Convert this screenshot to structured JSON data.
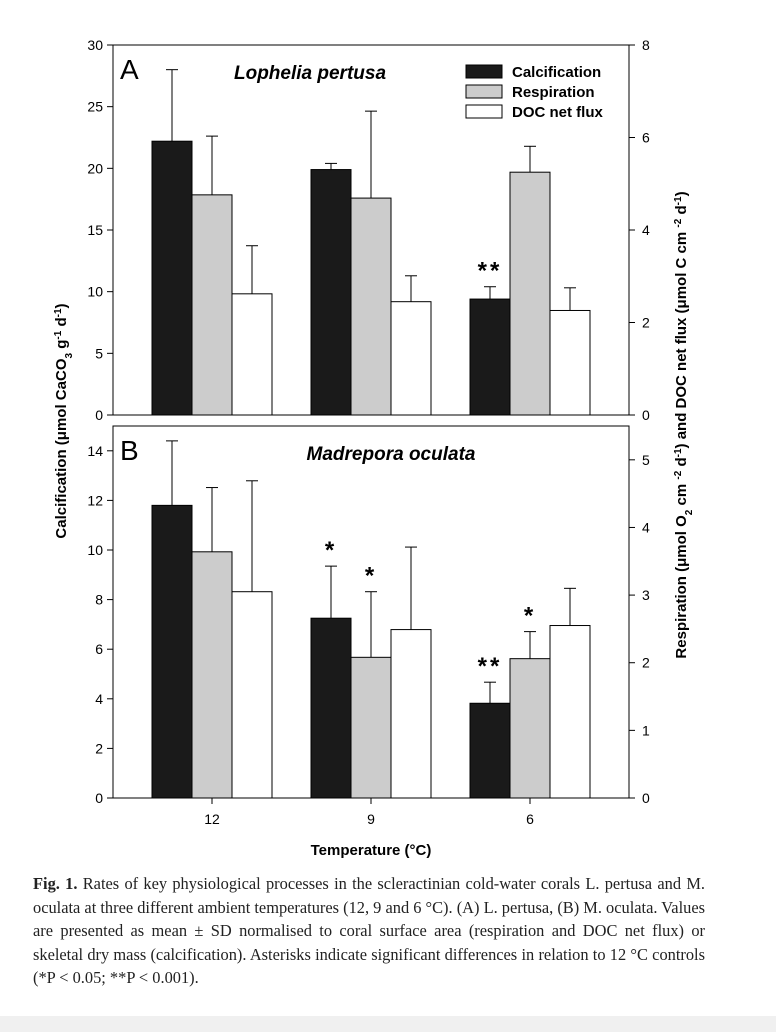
{
  "chart_data": [
    {
      "type": "bar",
      "panel": "A",
      "title": "Lophelia pertusa",
      "categories": [
        "12",
        "9",
        "6"
      ],
      "xlabel": "Temperature (°C)",
      "ylabel_left": "Calcification (μmol CaCO3 g-1 d-1)",
      "ylabel_right": "Respiration (μmol O2 cm-2 d-1) and DOC net flux (μmol C cm-2 d-1)",
      "ylim_left": [
        0,
        30
      ],
      "yticks_left": [
        "0",
        "5",
        "10",
        "15",
        "20",
        "25",
        "30"
      ],
      "ylim_right": [
        0,
        8
      ],
      "yticks_right": [
        "0",
        "2",
        "4",
        "6",
        "8"
      ],
      "legend": {
        "position": "top-right"
      },
      "series": [
        {
          "name": "Calcification",
          "axis": "left",
          "color": "#1a1a1a",
          "values": [
            22.2,
            19.9,
            9.4
          ],
          "sd": [
            5.8,
            0.5,
            1.0
          ]
        },
        {
          "name": "Respiration",
          "axis": "right",
          "color": "#cccccc",
          "values": [
            4.76,
            4.69,
            5.25
          ],
          "sd": [
            1.27,
            1.88,
            0.56
          ]
        },
        {
          "name": "DOC net flux",
          "axis": "right",
          "color": "#ffffff",
          "values": [
            2.62,
            2.45,
            2.26
          ],
          "sd": [
            1.04,
            0.56,
            0.49
          ]
        }
      ],
      "annotations": [
        {
          "series": "Calcification",
          "category": "6",
          "label": "**"
        }
      ]
    },
    {
      "type": "bar",
      "panel": "B",
      "title": "Madrepora oculata",
      "categories": [
        "12",
        "9",
        "6"
      ],
      "xlabel": "Temperature (°C)",
      "ylim_left": [
        0,
        15
      ],
      "yticks_left": [
        "0",
        "2",
        "4",
        "6",
        "8",
        "10",
        "12",
        "14"
      ],
      "ylim_right": [
        0,
        5.5
      ],
      "yticks_right": [
        "0",
        "1",
        "2",
        "3",
        "4",
        "5"
      ],
      "series": [
        {
          "name": "Calcification",
          "axis": "left",
          "color": "#1a1a1a",
          "values": [
            11.8,
            7.25,
            3.82
          ],
          "sd": [
            2.6,
            2.1,
            0.85
          ]
        },
        {
          "name": "Respiration",
          "axis": "right",
          "color": "#cccccc",
          "values": [
            3.64,
            2.08,
            2.06
          ],
          "sd": [
            0.95,
            0.97,
            0.4
          ]
        },
        {
          "name": "DOC net flux",
          "axis": "right",
          "color": "#ffffff",
          "values": [
            3.05,
            2.49,
            2.55
          ],
          "sd": [
            1.64,
            1.22,
            0.55
          ]
        }
      ],
      "annotations": [
        {
          "series": "Calcification",
          "category": "9",
          "label": "*"
        },
        {
          "series": "Respiration",
          "category": "9",
          "label": "*"
        },
        {
          "series": "Calcification",
          "category": "6",
          "label": "**"
        },
        {
          "series": "Respiration",
          "category": "6",
          "label": "*"
        }
      ]
    }
  ],
  "caption": {
    "label": "Fig. 1.",
    "text": "Rates of key physiological processes in the scleractinian cold-water corals L. pertusa and M. oculata at three different ambient temperatures (12, 9 and 6 °C). (A) L. pertusa, (B) M. oculata. Values are presented as mean ± SD normalised to coral surface area (respiration and DOC net flux) or skeletal dry mass (calcification). Asterisks indicate significant differences in relation to 12 °C controls (*P < 0.05; **P < 0.001)."
  }
}
